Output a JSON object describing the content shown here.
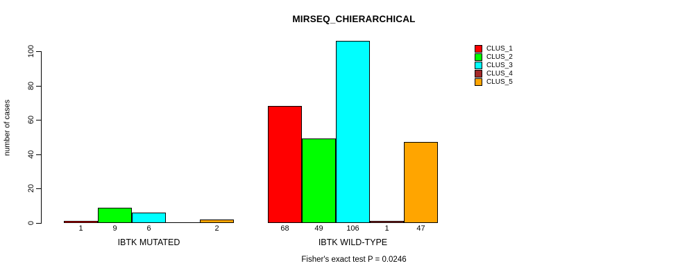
{
  "chart_data": {
    "type": "bar",
    "grouped": true,
    "title": "MIRSEQ_CHIERARCHICAL",
    "ylabel": "number of cases",
    "xlabel": "",
    "categories": [
      "IBTK MUTATED",
      "IBTK WILD-TYPE"
    ],
    "series": [
      {
        "name": "CLUS_1",
        "color": "#FF0000",
        "values": [
          1,
          68
        ]
      },
      {
        "name": "CLUS_2",
        "color": "#00FF00",
        "values": [
          9,
          49
        ]
      },
      {
        "name": "CLUS_3",
        "color": "#00FFFF",
        "values": [
          6,
          106
        ]
      },
      {
        "name": "CLUS_4",
        "color": "#A52A2A",
        "values": [
          0,
          1
        ]
      },
      {
        "name": "CLUS_5",
        "color": "#FFA500",
        "values": [
          2,
          47
        ]
      }
    ],
    "bar_labels": [
      [
        "1",
        "9",
        "6",
        "",
        "2"
      ],
      [
        "68",
        "49",
        "106",
        "1",
        "47"
      ]
    ],
    "ylim": [
      0,
      106
    ],
    "yticks": [
      0,
      20,
      40,
      60,
      80,
      100
    ],
    "grid": false,
    "legend_position": "topright",
    "annotation": "Fisher's exact test P = 0.0246",
    "colors": {
      "background": "#FFFFFF",
      "axis": "#000000",
      "bar_border": "#000000"
    }
  }
}
